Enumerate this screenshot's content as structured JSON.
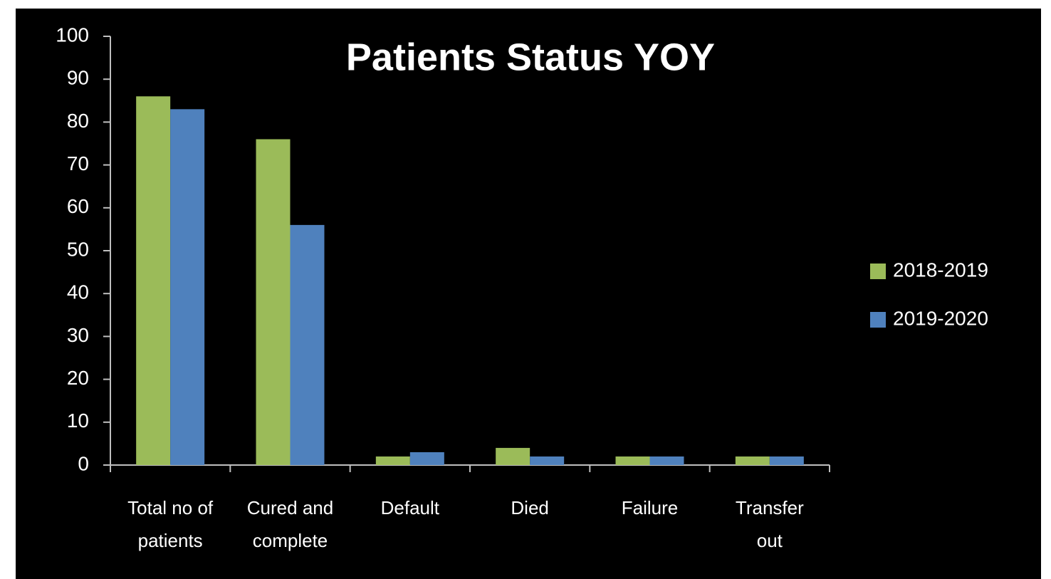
{
  "chart_data": {
    "type": "bar",
    "title": "Patients Status YOY",
    "categories": [
      "Total no of patients",
      "Cured and complete",
      "Default",
      "Died",
      "Failure",
      "Transfer out"
    ],
    "series": [
      {
        "name": "2018-2019",
        "color": "#9bbb59",
        "values": [
          86,
          76,
          2,
          4,
          2,
          2
        ]
      },
      {
        "name": "2019-2020",
        "color": "#4f81bd",
        "values": [
          83,
          56,
          3,
          2,
          2,
          2
        ]
      }
    ],
    "ylim": [
      0,
      100
    ],
    "yticks": [
      0,
      10,
      20,
      30,
      40,
      50,
      60,
      70,
      80,
      90,
      100
    ],
    "grid": false,
    "legend": "right"
  }
}
